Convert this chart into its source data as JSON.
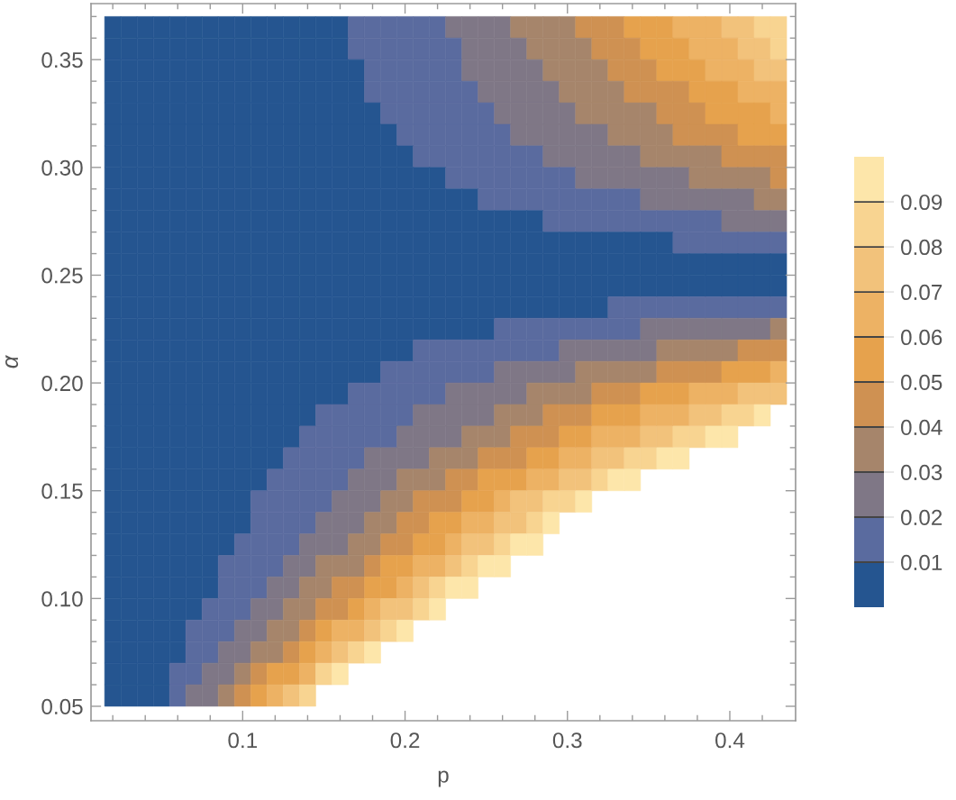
{
  "chart_data": {
    "type": "heatmap",
    "xlabel": "p",
    "ylabel": "α",
    "x": [
      0.02,
      0.03,
      0.04,
      0.05,
      0.06,
      0.07,
      0.08,
      0.09,
      0.1,
      0.11,
      0.12,
      0.13,
      0.14,
      0.15,
      0.16,
      0.17,
      0.18,
      0.19,
      0.2,
      0.21,
      0.22,
      0.23,
      0.24,
      0.25,
      0.26,
      0.27,
      0.28,
      0.29,
      0.3,
      0.31,
      0.32,
      0.33,
      0.34,
      0.35,
      0.36,
      0.37,
      0.38,
      0.39,
      0.4,
      0.41,
      0.42,
      0.43
    ],
    "y": [
      0.365,
      0.355,
      0.345,
      0.335,
      0.325,
      0.315,
      0.305,
      0.295,
      0.285,
      0.275,
      0.265,
      0.255,
      0.245,
      0.235,
      0.225,
      0.215,
      0.205,
      0.195,
      0.185,
      0.175,
      0.165,
      0.155,
      0.145,
      0.135,
      0.125,
      0.115,
      0.105,
      0.095,
      0.085,
      0.075,
      0.065,
      0.055
    ],
    "cells": [
      [
        0.005,
        0.005,
        0.005,
        0.005,
        0.005,
        0.005,
        0.005,
        0.005,
        0.005,
        0.005,
        0.005,
        0.005,
        0.005,
        0.005,
        0.005,
        0.015,
        0.015,
        0.015,
        0.015,
        0.015,
        0.015,
        0.025,
        0.025,
        0.025,
        0.025,
        0.035,
        0.035,
        0.035,
        0.035,
        0.045,
        0.045,
        0.045,
        0.055,
        0.055,
        0.055,
        0.065,
        0.065,
        0.065,
        0.075,
        0.075,
        0.085,
        0.085
      ],
      [
        0.005,
        0.005,
        0.005,
        0.005,
        0.005,
        0.005,
        0.005,
        0.005,
        0.005,
        0.005,
        0.005,
        0.005,
        0.005,
        0.005,
        0.005,
        0.015,
        0.015,
        0.015,
        0.015,
        0.015,
        0.015,
        0.015,
        0.025,
        0.025,
        0.025,
        0.025,
        0.035,
        0.035,
        0.035,
        0.035,
        0.045,
        0.045,
        0.045,
        0.055,
        0.055,
        0.055,
        0.065,
        0.065,
        0.065,
        0.075,
        0.075,
        0.085
      ],
      [
        0.005,
        0.005,
        0.005,
        0.005,
        0.005,
        0.005,
        0.005,
        0.005,
        0.005,
        0.005,
        0.005,
        0.005,
        0.005,
        0.005,
        0.005,
        0.005,
        0.015,
        0.015,
        0.015,
        0.015,
        0.015,
        0.015,
        0.025,
        0.025,
        0.025,
        0.025,
        0.025,
        0.035,
        0.035,
        0.035,
        0.035,
        0.045,
        0.045,
        0.045,
        0.055,
        0.055,
        0.055,
        0.065,
        0.065,
        0.065,
        0.075,
        0.075
      ],
      [
        0.005,
        0.005,
        0.005,
        0.005,
        0.005,
        0.005,
        0.005,
        0.005,
        0.005,
        0.005,
        0.005,
        0.005,
        0.005,
        0.005,
        0.005,
        0.005,
        0.015,
        0.015,
        0.015,
        0.015,
        0.015,
        0.015,
        0.015,
        0.025,
        0.025,
        0.025,
        0.025,
        0.025,
        0.035,
        0.035,
        0.035,
        0.035,
        0.045,
        0.045,
        0.045,
        0.045,
        0.055,
        0.055,
        0.055,
        0.065,
        0.065,
        0.065
      ],
      [
        0.005,
        0.005,
        0.005,
        0.005,
        0.005,
        0.005,
        0.005,
        0.005,
        0.005,
        0.005,
        0.005,
        0.005,
        0.005,
        0.005,
        0.005,
        0.005,
        0.005,
        0.015,
        0.015,
        0.015,
        0.015,
        0.015,
        0.015,
        0.015,
        0.025,
        0.025,
        0.025,
        0.025,
        0.025,
        0.035,
        0.035,
        0.035,
        0.035,
        0.035,
        0.045,
        0.045,
        0.045,
        0.055,
        0.055,
        0.055,
        0.055,
        0.065
      ],
      [
        0.005,
        0.005,
        0.005,
        0.005,
        0.005,
        0.005,
        0.005,
        0.005,
        0.005,
        0.005,
        0.005,
        0.005,
        0.005,
        0.005,
        0.005,
        0.005,
        0.005,
        0.005,
        0.015,
        0.015,
        0.015,
        0.015,
        0.015,
        0.015,
        0.015,
        0.025,
        0.025,
        0.025,
        0.025,
        0.025,
        0.025,
        0.035,
        0.035,
        0.035,
        0.035,
        0.045,
        0.045,
        0.045,
        0.045,
        0.055,
        0.055,
        0.055
      ],
      [
        0.005,
        0.005,
        0.005,
        0.005,
        0.005,
        0.005,
        0.005,
        0.005,
        0.005,
        0.005,
        0.005,
        0.005,
        0.005,
        0.005,
        0.005,
        0.005,
        0.005,
        0.005,
        0.005,
        0.015,
        0.015,
        0.015,
        0.015,
        0.015,
        0.015,
        0.015,
        0.015,
        0.025,
        0.025,
        0.025,
        0.025,
        0.025,
        0.025,
        0.035,
        0.035,
        0.035,
        0.035,
        0.035,
        0.045,
        0.045,
        0.045,
        0.045
      ],
      [
        0.005,
        0.005,
        0.005,
        0.005,
        0.005,
        0.005,
        0.005,
        0.005,
        0.005,
        0.005,
        0.005,
        0.005,
        0.005,
        0.005,
        0.005,
        0.005,
        0.005,
        0.005,
        0.005,
        0.005,
        0.005,
        0.015,
        0.015,
        0.015,
        0.015,
        0.015,
        0.015,
        0.015,
        0.015,
        0.025,
        0.025,
        0.025,
        0.025,
        0.025,
        0.025,
        0.025,
        0.035,
        0.035,
        0.035,
        0.035,
        0.035,
        0.045
      ],
      [
        0.005,
        0.005,
        0.005,
        0.005,
        0.005,
        0.005,
        0.005,
        0.005,
        0.005,
        0.005,
        0.005,
        0.005,
        0.005,
        0.005,
        0.005,
        0.005,
        0.005,
        0.005,
        0.005,
        0.005,
        0.005,
        0.005,
        0.005,
        0.015,
        0.015,
        0.015,
        0.015,
        0.015,
        0.015,
        0.015,
        0.015,
        0.015,
        0.015,
        0.025,
        0.025,
        0.025,
        0.025,
        0.025,
        0.025,
        0.025,
        0.035,
        0.035
      ],
      [
        0.005,
        0.005,
        0.005,
        0.005,
        0.005,
        0.005,
        0.005,
        0.005,
        0.005,
        0.005,
        0.005,
        0.005,
        0.005,
        0.005,
        0.005,
        0.005,
        0.005,
        0.005,
        0.005,
        0.005,
        0.005,
        0.005,
        0.005,
        0.005,
        0.005,
        0.005,
        0.005,
        0.015,
        0.015,
        0.015,
        0.015,
        0.015,
        0.015,
        0.015,
        0.015,
        0.015,
        0.015,
        0.015,
        0.025,
        0.025,
        0.025,
        0.025
      ],
      [
        0.005,
        0.005,
        0.005,
        0.005,
        0.005,
        0.005,
        0.005,
        0.005,
        0.005,
        0.005,
        0.005,
        0.005,
        0.005,
        0.005,
        0.005,
        0.005,
        0.005,
        0.005,
        0.005,
        0.005,
        0.005,
        0.005,
        0.005,
        0.005,
        0.005,
        0.005,
        0.005,
        0.005,
        0.005,
        0.005,
        0.005,
        0.005,
        0.005,
        0.005,
        0.005,
        0.015,
        0.015,
        0.015,
        0.015,
        0.015,
        0.015,
        0.015
      ],
      [
        0.005,
        0.005,
        0.005,
        0.005,
        0.005,
        0.005,
        0.005,
        0.005,
        0.005,
        0.005,
        0.005,
        0.005,
        0.005,
        0.005,
        0.005,
        0.005,
        0.005,
        0.005,
        0.005,
        0.005,
        0.005,
        0.005,
        0.005,
        0.005,
        0.005,
        0.005,
        0.005,
        0.005,
        0.005,
        0.005,
        0.005,
        0.005,
        0.005,
        0.005,
        0.005,
        0.005,
        0.005,
        0.005,
        0.005,
        0.005,
        0.005,
        0.005
      ],
      [
        0.005,
        0.005,
        0.005,
        0.005,
        0.005,
        0.005,
        0.005,
        0.005,
        0.005,
        0.005,
        0.005,
        0.005,
        0.005,
        0.005,
        0.005,
        0.005,
        0.005,
        0.005,
        0.005,
        0.005,
        0.005,
        0.005,
        0.005,
        0.005,
        0.005,
        0.005,
        0.005,
        0.005,
        0.005,
        0.005,
        0.005,
        0.005,
        0.005,
        0.005,
        0.005,
        0.005,
        0.005,
        0.005,
        0.005,
        0.005,
        0.005,
        0.005
      ],
      [
        0.005,
        0.005,
        0.005,
        0.005,
        0.005,
        0.005,
        0.005,
        0.005,
        0.005,
        0.005,
        0.005,
        0.005,
        0.005,
        0.005,
        0.005,
        0.005,
        0.005,
        0.005,
        0.005,
        0.005,
        0.005,
        0.005,
        0.005,
        0.005,
        0.005,
        0.005,
        0.005,
        0.005,
        0.005,
        0.005,
        0.005,
        0.015,
        0.015,
        0.015,
        0.015,
        0.015,
        0.015,
        0.015,
        0.015,
        0.015,
        0.015,
        0.015
      ],
      [
        0.005,
        0.005,
        0.005,
        0.005,
        0.005,
        0.005,
        0.005,
        0.005,
        0.005,
        0.005,
        0.005,
        0.005,
        0.005,
        0.005,
        0.005,
        0.005,
        0.005,
        0.005,
        0.005,
        0.005,
        0.005,
        0.005,
        0.005,
        0.005,
        0.015,
        0.015,
        0.015,
        0.015,
        0.015,
        0.015,
        0.015,
        0.015,
        0.015,
        0.025,
        0.025,
        0.025,
        0.025,
        0.025,
        0.025,
        0.025,
        0.025,
        0.035
      ],
      [
        0.005,
        0.005,
        0.005,
        0.005,
        0.005,
        0.005,
        0.005,
        0.005,
        0.005,
        0.005,
        0.005,
        0.005,
        0.005,
        0.005,
        0.005,
        0.005,
        0.005,
        0.005,
        0.005,
        0.015,
        0.015,
        0.015,
        0.015,
        0.015,
        0.015,
        0.015,
        0.015,
        0.015,
        0.025,
        0.025,
        0.025,
        0.025,
        0.025,
        0.025,
        0.035,
        0.035,
        0.035,
        0.035,
        0.035,
        0.045,
        0.045,
        0.045
      ],
      [
        0.005,
        0.005,
        0.005,
        0.005,
        0.005,
        0.005,
        0.005,
        0.005,
        0.005,
        0.005,
        0.005,
        0.005,
        0.005,
        0.005,
        0.005,
        0.005,
        0.005,
        0.015,
        0.015,
        0.015,
        0.015,
        0.015,
        0.015,
        0.015,
        0.025,
        0.025,
        0.025,
        0.025,
        0.025,
        0.035,
        0.035,
        0.035,
        0.035,
        0.035,
        0.045,
        0.045,
        0.045,
        0.045,
        0.055,
        0.055,
        0.055,
        0.065
      ],
      [
        0.005,
        0.005,
        0.005,
        0.005,
        0.005,
        0.005,
        0.005,
        0.005,
        0.005,
        0.005,
        0.005,
        0.005,
        0.005,
        0.005,
        0.005,
        0.015,
        0.015,
        0.015,
        0.015,
        0.015,
        0.015,
        0.025,
        0.025,
        0.025,
        0.025,
        0.025,
        0.035,
        0.035,
        0.035,
        0.035,
        0.045,
        0.045,
        0.045,
        0.055,
        0.055,
        0.055,
        0.065,
        0.065,
        0.065,
        0.075,
        0.075,
        0.075
      ],
      [
        0.005,
        0.005,
        0.005,
        0.005,
        0.005,
        0.005,
        0.005,
        0.005,
        0.005,
        0.005,
        0.005,
        0.005,
        0.005,
        0.015,
        0.015,
        0.015,
        0.015,
        0.015,
        0.015,
        0.025,
        0.025,
        0.025,
        0.025,
        0.025,
        0.035,
        0.035,
        0.035,
        0.045,
        0.045,
        0.045,
        0.055,
        0.055,
        0.055,
        0.065,
        0.065,
        0.065,
        0.075,
        0.075,
        0.085,
        0.085,
        0.095,
        null
      ],
      [
        0.005,
        0.005,
        0.005,
        0.005,
        0.005,
        0.005,
        0.005,
        0.005,
        0.005,
        0.005,
        0.005,
        0.005,
        0.015,
        0.015,
        0.015,
        0.015,
        0.015,
        0.015,
        0.025,
        0.025,
        0.025,
        0.025,
        0.035,
        0.035,
        0.035,
        0.045,
        0.045,
        0.045,
        0.055,
        0.055,
        0.065,
        0.065,
        0.065,
        0.075,
        0.075,
        0.085,
        0.085,
        0.095,
        0.095,
        null,
        null,
        null
      ],
      [
        0.005,
        0.005,
        0.005,
        0.005,
        0.005,
        0.005,
        0.005,
        0.005,
        0.005,
        0.005,
        0.005,
        0.015,
        0.015,
        0.015,
        0.015,
        0.015,
        0.025,
        0.025,
        0.025,
        0.025,
        0.035,
        0.035,
        0.035,
        0.045,
        0.045,
        0.045,
        0.055,
        0.055,
        0.065,
        0.065,
        0.075,
        0.075,
        0.085,
        0.085,
        0.095,
        0.095,
        null,
        null,
        null,
        null,
        null,
        null
      ],
      [
        0.005,
        0.005,
        0.005,
        0.005,
        0.005,
        0.005,
        0.005,
        0.005,
        0.005,
        0.005,
        0.015,
        0.015,
        0.015,
        0.015,
        0.015,
        0.025,
        0.025,
        0.025,
        0.035,
        0.035,
        0.035,
        0.045,
        0.045,
        0.055,
        0.055,
        0.055,
        0.065,
        0.065,
        0.075,
        0.075,
        0.085,
        0.095,
        0.095,
        null,
        null,
        null,
        null,
        null,
        null,
        null,
        null,
        null
      ],
      [
        0.005,
        0.005,
        0.005,
        0.005,
        0.005,
        0.005,
        0.005,
        0.005,
        0.005,
        0.015,
        0.015,
        0.015,
        0.015,
        0.015,
        0.025,
        0.025,
        0.025,
        0.035,
        0.035,
        0.045,
        0.045,
        0.045,
        0.055,
        0.055,
        0.065,
        0.075,
        0.075,
        0.085,
        0.085,
        0.095,
        null,
        null,
        null,
        null,
        null,
        null,
        null,
        null,
        null,
        null,
        null,
        null
      ],
      [
        0.005,
        0.005,
        0.005,
        0.005,
        0.005,
        0.005,
        0.005,
        0.005,
        0.005,
        0.015,
        0.015,
        0.015,
        0.015,
        0.025,
        0.025,
        0.025,
        0.035,
        0.035,
        0.045,
        0.045,
        0.055,
        0.055,
        0.065,
        0.065,
        0.075,
        0.075,
        0.085,
        0.095,
        null,
        null,
        null,
        null,
        null,
        null,
        null,
        null,
        null,
        null,
        null,
        null,
        null,
        null
      ],
      [
        0.005,
        0.005,
        0.005,
        0.005,
        0.005,
        0.005,
        0.005,
        0.005,
        0.015,
        0.015,
        0.015,
        0.015,
        0.025,
        0.025,
        0.025,
        0.035,
        0.035,
        0.045,
        0.045,
        0.055,
        0.055,
        0.065,
        0.075,
        0.075,
        0.085,
        0.095,
        0.095,
        null,
        null,
        null,
        null,
        null,
        null,
        null,
        null,
        null,
        null,
        null,
        null,
        null,
        null,
        null
      ],
      [
        0.005,
        0.005,
        0.005,
        0.005,
        0.005,
        0.005,
        0.005,
        0.015,
        0.015,
        0.015,
        0.015,
        0.025,
        0.025,
        0.035,
        0.035,
        0.035,
        0.045,
        0.055,
        0.055,
        0.065,
        0.065,
        0.075,
        0.085,
        0.095,
        0.095,
        null,
        null,
        null,
        null,
        null,
        null,
        null,
        null,
        null,
        null,
        null,
        null,
        null,
        null,
        null,
        null,
        null
      ],
      [
        0.005,
        0.005,
        0.005,
        0.005,
        0.005,
        0.005,
        0.005,
        0.015,
        0.015,
        0.015,
        0.025,
        0.025,
        0.035,
        0.035,
        0.045,
        0.045,
        0.055,
        0.055,
        0.065,
        0.075,
        0.085,
        0.095,
        0.095,
        null,
        null,
        null,
        null,
        null,
        null,
        null,
        null,
        null,
        null,
        null,
        null,
        null,
        null,
        null,
        null,
        null,
        null,
        null
      ],
      [
        0.005,
        0.005,
        0.005,
        0.005,
        0.005,
        0.005,
        0.015,
        0.015,
        0.015,
        0.025,
        0.025,
        0.035,
        0.035,
        0.045,
        0.045,
        0.055,
        0.065,
        0.075,
        0.075,
        0.085,
        0.095,
        null,
        null,
        null,
        null,
        null,
        null,
        null,
        null,
        null,
        null,
        null,
        null,
        null,
        null,
        null,
        null,
        null,
        null,
        null,
        null,
        null
      ],
      [
        0.005,
        0.005,
        0.005,
        0.005,
        0.005,
        0.015,
        0.015,
        0.015,
        0.025,
        0.025,
        0.035,
        0.035,
        0.045,
        0.055,
        0.065,
        0.065,
        0.075,
        0.085,
        0.095,
        null,
        null,
        null,
        null,
        null,
        null,
        null,
        null,
        null,
        null,
        null,
        null,
        null,
        null,
        null,
        null,
        null,
        null,
        null,
        null,
        null,
        null,
        null
      ],
      [
        0.005,
        0.005,
        0.005,
        0.005,
        0.005,
        0.015,
        0.015,
        0.025,
        0.025,
        0.035,
        0.035,
        0.045,
        0.055,
        0.065,
        0.075,
        0.085,
        0.095,
        null,
        null,
        null,
        null,
        null,
        null,
        null,
        null,
        null,
        null,
        null,
        null,
        null,
        null,
        null,
        null,
        null,
        null,
        null,
        null,
        null,
        null,
        null,
        null,
        null
      ],
      [
        0.005,
        0.005,
        0.005,
        0.005,
        0.015,
        0.015,
        0.025,
        0.025,
        0.035,
        0.045,
        0.055,
        0.055,
        0.065,
        0.085,
        0.095,
        null,
        null,
        null,
        null,
        null,
        null,
        null,
        null,
        null,
        null,
        null,
        null,
        null,
        null,
        null,
        null,
        null,
        null,
        null,
        null,
        null,
        null,
        null,
        null,
        null,
        null,
        null
      ],
      [
        0.005,
        0.005,
        0.005,
        0.005,
        0.015,
        0.025,
        0.025,
        0.035,
        0.045,
        0.055,
        0.065,
        0.075,
        0.085,
        null,
        null,
        null,
        null,
        null,
        null,
        null,
        null,
        null,
        null,
        null,
        null,
        null,
        null,
        null,
        null,
        null,
        null,
        null,
        null,
        null,
        null,
        null,
        null,
        null,
        null,
        null,
        null,
        null
      ]
    ],
    "colors": [
      "#255590",
      "#5a6b9f",
      "#7f7786",
      "#a6856b",
      "#cf9152",
      "#e6a24d",
      "#edb264",
      "#f2c27b",
      "#f8d491",
      "#fde6aa"
    ],
    "clim": [
      0,
      0.1
    ],
    "cticks": [
      0.01,
      0.02,
      0.03,
      0.04,
      0.05,
      0.06,
      0.07,
      0.08,
      0.09
    ],
    "xlim": [
      0.0066,
      0.4405
    ],
    "xticks": [
      {
        "value": 0.02,
        "label": null
      },
      {
        "value": 0.04,
        "label": null
      },
      {
        "value": 0.06,
        "label": null
      },
      {
        "value": 0.08,
        "label": null
      },
      0.1,
      {
        "value": 0.12,
        "label": null
      },
      {
        "value": 0.14,
        "label": null
      },
      {
        "value": 0.16,
        "label": null
      },
      {
        "value": 0.18,
        "label": null
      },
      0.2,
      {
        "value": 0.22,
        "label": null
      },
      {
        "value": 0.24,
        "label": null
      },
      {
        "value": 0.26,
        "label": null
      },
      {
        "value": 0.28,
        "label": null
      },
      0.3,
      {
        "value": 0.32,
        "label": null
      },
      {
        "value": 0.34,
        "label": null
      },
      {
        "value": 0.36,
        "label": null
      },
      {
        "value": 0.38,
        "label": null
      },
      0.4,
      {
        "value": 0.42,
        "label": null
      }
    ],
    "ylim": [
      0.0433,
      0.376
    ],
    "yticks": [
      0.05,
      {
        "value": 0.06,
        "label": null
      },
      {
        "value": 0.07,
        "label": null
      },
      {
        "value": 0.08,
        "label": null
      },
      {
        "value": 0.09,
        "label": null
      },
      {
        "value": 0.1,
        "label": "0.10"
      },
      {
        "value": 0.11,
        "label": null
      },
      {
        "value": 0.12,
        "label": null
      },
      {
        "value": 0.13,
        "label": null
      },
      {
        "value": 0.14,
        "label": null
      },
      0.15,
      {
        "value": 0.16,
        "label": null
      },
      {
        "value": 0.17,
        "label": null
      },
      {
        "value": 0.18,
        "label": null
      },
      {
        "value": 0.19,
        "label": null
      },
      {
        "value": 0.2,
        "label": "0.20"
      },
      {
        "value": 0.21,
        "label": null
      },
      {
        "value": 0.22,
        "label": null
      },
      {
        "value": 0.23,
        "label": null
      },
      {
        "value": 0.24,
        "label": null
      },
      0.25,
      {
        "value": 0.26,
        "label": null
      },
      {
        "value": 0.27,
        "label": null
      },
      {
        "value": 0.28,
        "label": null
      },
      {
        "value": 0.29,
        "label": null
      },
      {
        "value": 0.3,
        "label": "0.30"
      },
      {
        "value": 0.31,
        "label": null
      },
      {
        "value": 0.32,
        "label": null
      },
      {
        "value": 0.33,
        "label": null
      },
      {
        "value": 0.34,
        "label": null
      },
      0.35,
      {
        "value": 0.36,
        "label": null
      },
      {
        "value": 0.37,
        "label": null
      }
    ]
  }
}
